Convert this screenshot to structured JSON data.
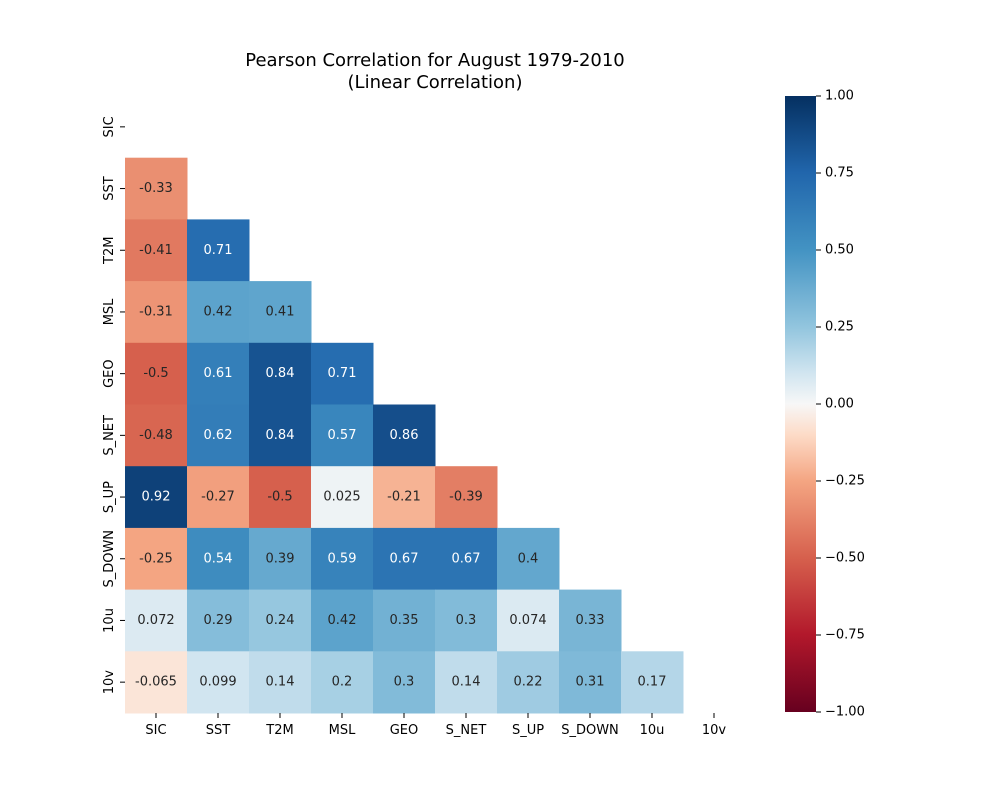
{
  "chart_data": {
    "type": "heatmap",
    "title": "Pearson Correlation for August 1979-2010",
    "subtitle": "(Linear Correlation)",
    "variables": [
      "SIC",
      "SST",
      "T2M",
      "MSL",
      "GEO",
      "S_NET",
      "S_UP",
      "S_DOWN",
      "10u",
      "10v"
    ],
    "mask": "lower-triangle (diagonal and upper triangle hidden)",
    "cells": [
      {
        "row": "SST",
        "col": "SIC",
        "value": -0.33,
        "label": "-0.33"
      },
      {
        "row": "T2M",
        "col": "SIC",
        "value": -0.41,
        "label": "-0.41"
      },
      {
        "row": "T2M",
        "col": "SST",
        "value": 0.71,
        "label": "0.71"
      },
      {
        "row": "MSL",
        "col": "SIC",
        "value": -0.31,
        "label": "-0.31"
      },
      {
        "row": "MSL",
        "col": "SST",
        "value": 0.42,
        "label": "0.42"
      },
      {
        "row": "MSL",
        "col": "T2M",
        "value": 0.41,
        "label": "0.41"
      },
      {
        "row": "GEO",
        "col": "SIC",
        "value": -0.5,
        "label": "-0.5"
      },
      {
        "row": "GEO",
        "col": "SST",
        "value": 0.61,
        "label": "0.61"
      },
      {
        "row": "GEO",
        "col": "T2M",
        "value": 0.84,
        "label": "0.84"
      },
      {
        "row": "GEO",
        "col": "MSL",
        "value": 0.71,
        "label": "0.71"
      },
      {
        "row": "S_NET",
        "col": "SIC",
        "value": -0.48,
        "label": "-0.48"
      },
      {
        "row": "S_NET",
        "col": "SST",
        "value": 0.62,
        "label": "0.62"
      },
      {
        "row": "S_NET",
        "col": "T2M",
        "value": 0.84,
        "label": "0.84"
      },
      {
        "row": "S_NET",
        "col": "MSL",
        "value": 0.57,
        "label": "0.57"
      },
      {
        "row": "S_NET",
        "col": "GEO",
        "value": 0.86,
        "label": "0.86"
      },
      {
        "row": "S_UP",
        "col": "SIC",
        "value": 0.92,
        "label": "0.92"
      },
      {
        "row": "S_UP",
        "col": "SST",
        "value": -0.27,
        "label": "-0.27"
      },
      {
        "row": "S_UP",
        "col": "T2M",
        "value": -0.5,
        "label": "-0.5"
      },
      {
        "row": "S_UP",
        "col": "MSL",
        "value": 0.025,
        "label": "0.025"
      },
      {
        "row": "S_UP",
        "col": "GEO",
        "value": -0.21,
        "label": "-0.21"
      },
      {
        "row": "S_UP",
        "col": "S_NET",
        "value": -0.39,
        "label": "-0.39"
      },
      {
        "row": "S_DOWN",
        "col": "SIC",
        "value": -0.25,
        "label": "-0.25"
      },
      {
        "row": "S_DOWN",
        "col": "SST",
        "value": 0.54,
        "label": "0.54"
      },
      {
        "row": "S_DOWN",
        "col": "T2M",
        "value": 0.39,
        "label": "0.39"
      },
      {
        "row": "S_DOWN",
        "col": "MSL",
        "value": 0.59,
        "label": "0.59"
      },
      {
        "row": "S_DOWN",
        "col": "GEO",
        "value": 0.67,
        "label": "0.67"
      },
      {
        "row": "S_DOWN",
        "col": "S_NET",
        "value": 0.67,
        "label": "0.67"
      },
      {
        "row": "S_DOWN",
        "col": "S_UP",
        "value": 0.4,
        "label": "0.4"
      },
      {
        "row": "10u",
        "col": "SIC",
        "value": 0.072,
        "label": "0.072"
      },
      {
        "row": "10u",
        "col": "SST",
        "value": 0.29,
        "label": "0.29"
      },
      {
        "row": "10u",
        "col": "T2M",
        "value": 0.24,
        "label": "0.24"
      },
      {
        "row": "10u",
        "col": "MSL",
        "value": 0.42,
        "label": "0.42"
      },
      {
        "row": "10u",
        "col": "GEO",
        "value": 0.35,
        "label": "0.35"
      },
      {
        "row": "10u",
        "col": "S_NET",
        "value": 0.3,
        "label": "0.3"
      },
      {
        "row": "10u",
        "col": "S_UP",
        "value": 0.074,
        "label": "0.074"
      },
      {
        "row": "10u",
        "col": "S_DOWN",
        "value": 0.33,
        "label": "0.33"
      },
      {
        "row": "10v",
        "col": "SIC",
        "value": -0.065,
        "label": "-0.065"
      },
      {
        "row": "10v",
        "col": "SST",
        "value": 0.099,
        "label": "0.099"
      },
      {
        "row": "10v",
        "col": "T2M",
        "value": 0.14,
        "label": "0.14"
      },
      {
        "row": "10v",
        "col": "MSL",
        "value": 0.2,
        "label": "0.2"
      },
      {
        "row": "10v",
        "col": "GEO",
        "value": 0.3,
        "label": "0.3"
      },
      {
        "row": "10v",
        "col": "S_NET",
        "value": 0.14,
        "label": "0.14"
      },
      {
        "row": "10v",
        "col": "S_UP",
        "value": 0.22,
        "label": "0.22"
      },
      {
        "row": "10v",
        "col": "S_DOWN",
        "value": 0.31,
        "label": "0.31"
      },
      {
        "row": "10v",
        "col": "10u",
        "value": 0.17,
        "label": "0.17"
      }
    ],
    "colorbar": {
      "colormap": "RdBu",
      "range": [
        -1.0,
        1.0
      ],
      "ticks": [
        1.0,
        0.75,
        0.5,
        0.25,
        0.0,
        -0.25,
        -0.5,
        -0.75,
        -1.0
      ],
      "tick_labels": [
        "1.00",
        "0.75",
        "0.50",
        "0.25",
        "0.00",
        "−0.25",
        "−0.50",
        "−0.75",
        "−1.00"
      ],
      "stops": [
        {
          "v": -1.0,
          "color": "#67001f"
        },
        {
          "v": -0.75,
          "color": "#b2182b"
        },
        {
          "v": -0.5,
          "color": "#d6604d"
        },
        {
          "v": -0.25,
          "color": "#f4a582"
        },
        {
          "v": -0.1,
          "color": "#fddbc7"
        },
        {
          "v": 0.0,
          "color": "#f7f7f7"
        },
        {
          "v": 0.1,
          "color": "#d1e5f0"
        },
        {
          "v": 0.25,
          "color": "#92c5de"
        },
        {
          "v": 0.5,
          "color": "#4393c3"
        },
        {
          "v": 0.75,
          "color": "#2166ac"
        },
        {
          "v": 1.0,
          "color": "#053061"
        }
      ]
    },
    "grid": false
  }
}
